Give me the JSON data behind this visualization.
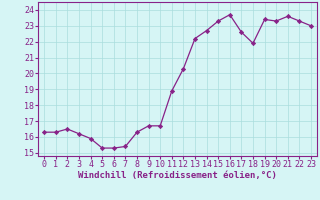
{
  "hours": [
    0,
    1,
    2,
    3,
    4,
    5,
    6,
    7,
    8,
    9,
    10,
    11,
    12,
    13,
    14,
    15,
    16,
    17,
    18,
    19,
    20,
    21,
    22,
    23
  ],
  "values": [
    16.3,
    16.3,
    16.5,
    16.2,
    15.9,
    15.3,
    15.3,
    15.4,
    16.3,
    16.7,
    16.7,
    18.9,
    20.3,
    22.2,
    22.7,
    23.3,
    23.7,
    22.6,
    21.9,
    23.4,
    23.3,
    23.6,
    23.3,
    23.0
  ],
  "line_color": "#882288",
  "marker": "D",
  "marker_size": 2.2,
  "bg_color": "#d6f5f5",
  "grid_color": "#aadddd",
  "ylabel_ticks": [
    15,
    16,
    17,
    18,
    19,
    20,
    21,
    22,
    23,
    24
  ],
  "ylim": [
    14.8,
    24.5
  ],
  "xlim": [
    -0.5,
    23.5
  ],
  "xlabel": "Windchill (Refroidissement éolien,°C)",
  "xlabel_fontsize": 6.5,
  "tick_fontsize": 6.0,
  "line_width": 0.9
}
